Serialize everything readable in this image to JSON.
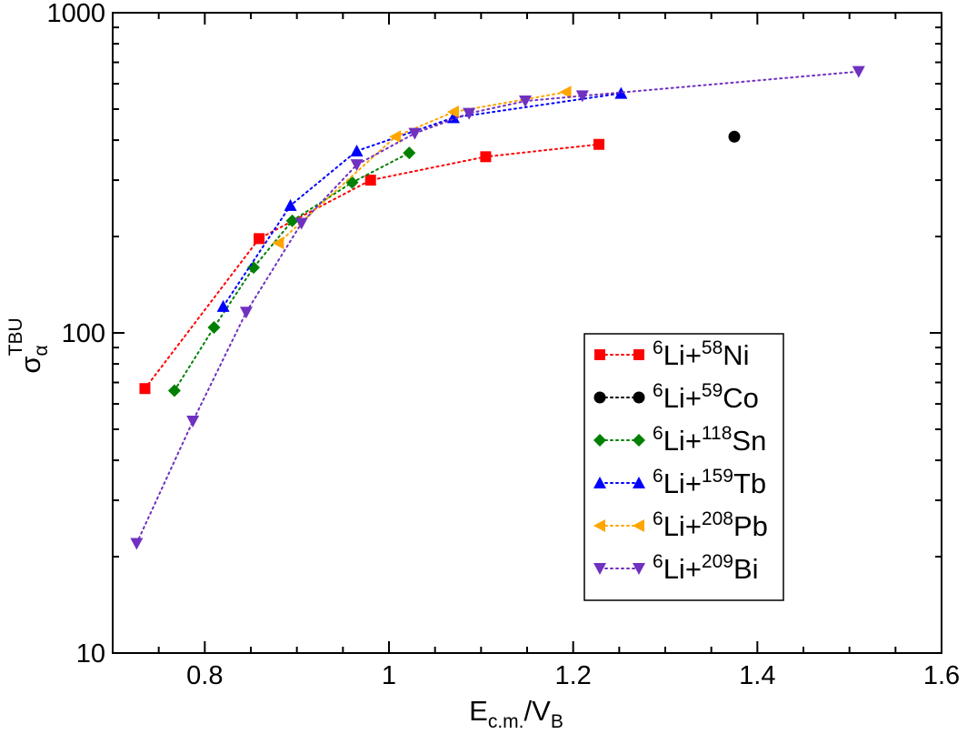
{
  "chart_data": {
    "type": "scatter",
    "xlabel": {
      "main": "E",
      "sub1": "c.m.",
      "slash": "/V",
      "sub2": "B"
    },
    "ylabel": {
      "main": "σ",
      "sub": "α",
      "sup": "TBU"
    },
    "xlim": [
      0.7,
      1.6
    ],
    "ylim": [
      10,
      1000
    ],
    "yscale": "log",
    "x_ticks": [
      0.8,
      1.0,
      1.2,
      1.4,
      1.6
    ],
    "x_tick_labels": [
      "0.8",
      "1",
      "1.2",
      "1.4",
      "1.6"
    ],
    "y_ticks": [
      10,
      100,
      1000
    ],
    "y_tick_labels": [
      "10",
      "100",
      "1000"
    ],
    "grid": false,
    "legend_position": "lower-right",
    "series": [
      {
        "name": "Ni",
        "label": {
          "pre": "6",
          "mid": "Li+",
          "sup": "58",
          "el": "Ni"
        },
        "marker": "square",
        "color": "#ff0000",
        "line": "dotted",
        "points": [
          [
            0.735,
            67
          ],
          [
            0.859,
            197
          ],
          [
            0.98,
            300
          ],
          [
            1.105,
            355
          ],
          [
            1.228,
            388
          ]
        ]
      },
      {
        "name": "Co",
        "label": {
          "pre": "6",
          "mid": "Li+",
          "sup": "59",
          "el": "Co"
        },
        "marker": "circle",
        "color": "#000000",
        "line": "dotted",
        "points": [
          [
            1.375,
            410
          ]
        ]
      },
      {
        "name": "Sn",
        "label": {
          "pre": "6",
          "mid": "Li+",
          "sup": "118",
          "el": "Sn"
        },
        "marker": "diamond",
        "color": "#008000",
        "line": "dotted",
        "points": [
          [
            0.767,
            66
          ],
          [
            0.81,
            104
          ],
          [
            0.853,
            160
          ],
          [
            0.895,
            224
          ],
          [
            0.96,
            295
          ],
          [
            1.022,
            365
          ]
        ]
      },
      {
        "name": "Tb",
        "label": {
          "pre": "6",
          "mid": "Li+",
          "sup": "159",
          "el": "Tb"
        },
        "marker": "triangle-up",
        "color": "#0000ff",
        "line": "dotted",
        "points": [
          [
            0.82,
            121
          ],
          [
            0.893,
            250
          ],
          [
            0.965,
            370
          ],
          [
            1.07,
            470
          ],
          [
            1.252,
            560
          ]
        ]
      },
      {
        "name": "Pb",
        "label": {
          "pre": "6",
          "mid": "Li+",
          "sup": "208",
          "el": "Pb"
        },
        "marker": "triangle-left",
        "color": "#ffa500",
        "line": "dotted",
        "points": [
          [
            0.88,
            191
          ],
          [
            1.007,
            410
          ],
          [
            1.07,
            490
          ],
          [
            1.192,
            565
          ]
        ]
      },
      {
        "name": "Bi",
        "label": {
          "pre": "6",
          "mid": "Li+",
          "sup": "209",
          "el": "Bi"
        },
        "marker": "triangle-down",
        "color": "#7030c0",
        "line": "dotted",
        "points": [
          [
            0.726,
            22
          ],
          [
            0.787,
            53
          ],
          [
            0.845,
            116
          ],
          [
            0.905,
            220
          ],
          [
            0.965,
            335
          ],
          [
            1.028,
            420
          ],
          [
            1.087,
            485
          ],
          [
            1.148,
            530
          ],
          [
            1.21,
            550
          ],
          [
            1.51,
            655
          ]
        ]
      }
    ]
  }
}
